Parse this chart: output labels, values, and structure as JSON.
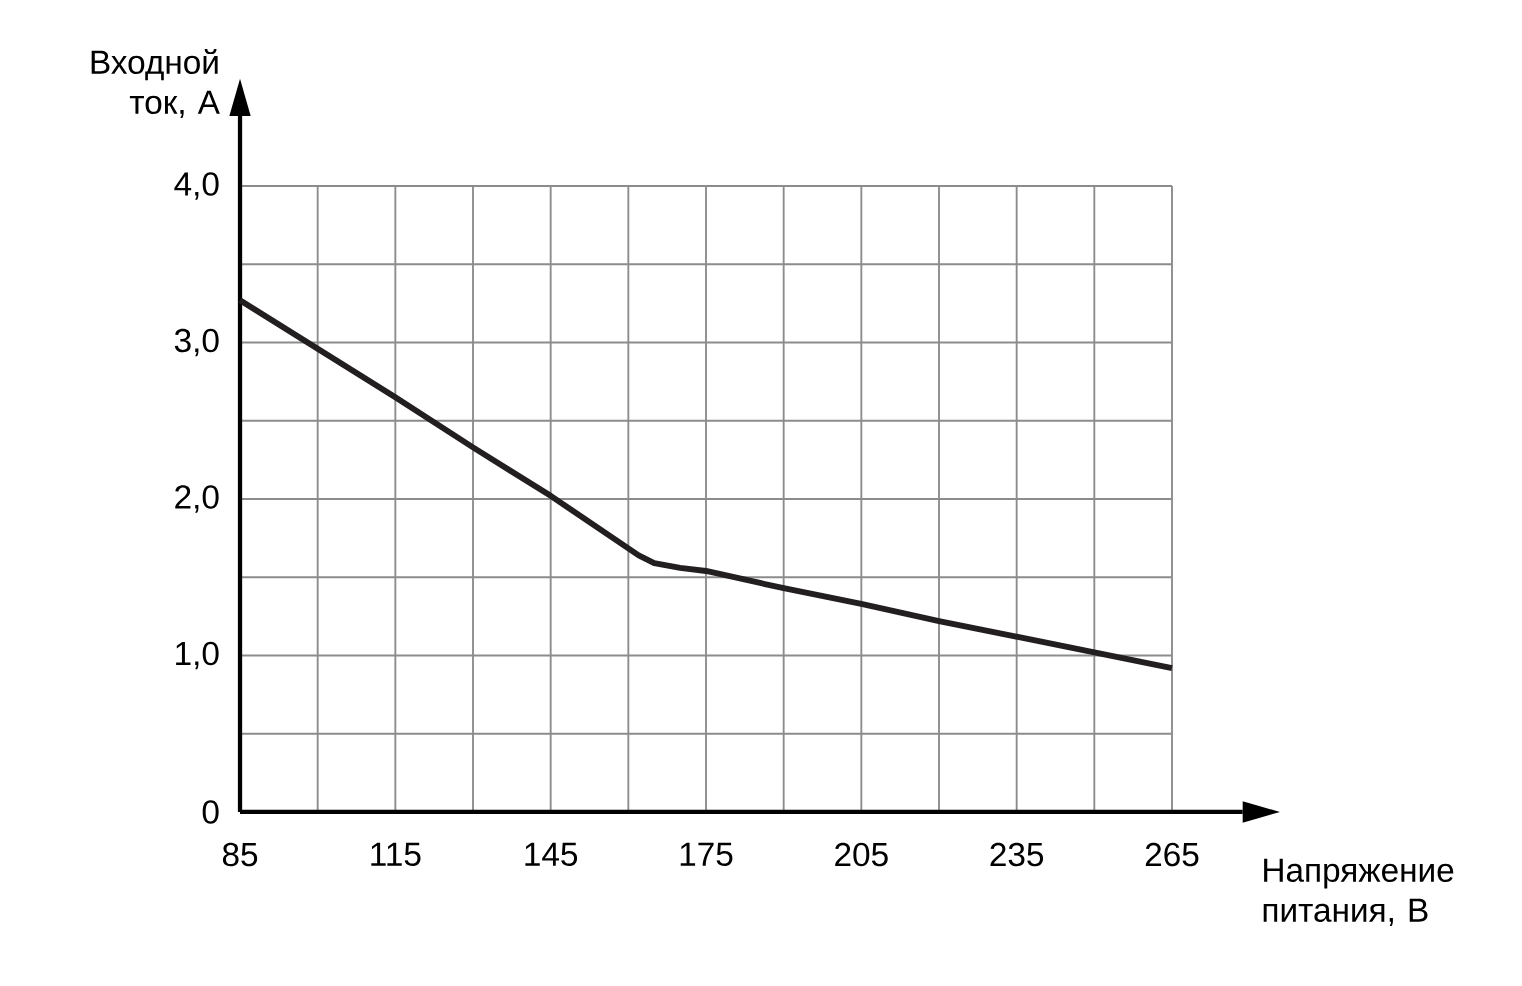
{
  "chart_data": {
    "type": "line",
    "xlabel": "Напряжение питания, В",
    "ylabel": "Входной ток, А",
    "x": [
      85,
      100,
      115,
      130,
      145,
      162,
      165,
      170,
      175,
      190,
      205,
      220,
      235,
      250,
      265
    ],
    "values": [
      3.27,
      2.96,
      2.65,
      2.33,
      2.02,
      1.64,
      1.59,
      1.56,
      1.54,
      1.43,
      1.33,
      1.22,
      1.12,
      1.02,
      0.92
    ],
    "color": "#231f20",
    "xlim": [
      85,
      265
    ],
    "ylim": [
      0,
      4
    ],
    "xticks": [
      85,
      115,
      145,
      175,
      205,
      235,
      265
    ],
    "yticks": [
      0,
      {
        "value": 1,
        "label": "1,0"
      },
      {
        "value": 2,
        "label": "2,0"
      },
      {
        "value": 3,
        "label": "3,0"
      },
      {
        "value": 4,
        "label": "4,0"
      }
    ],
    "grid": true
  }
}
